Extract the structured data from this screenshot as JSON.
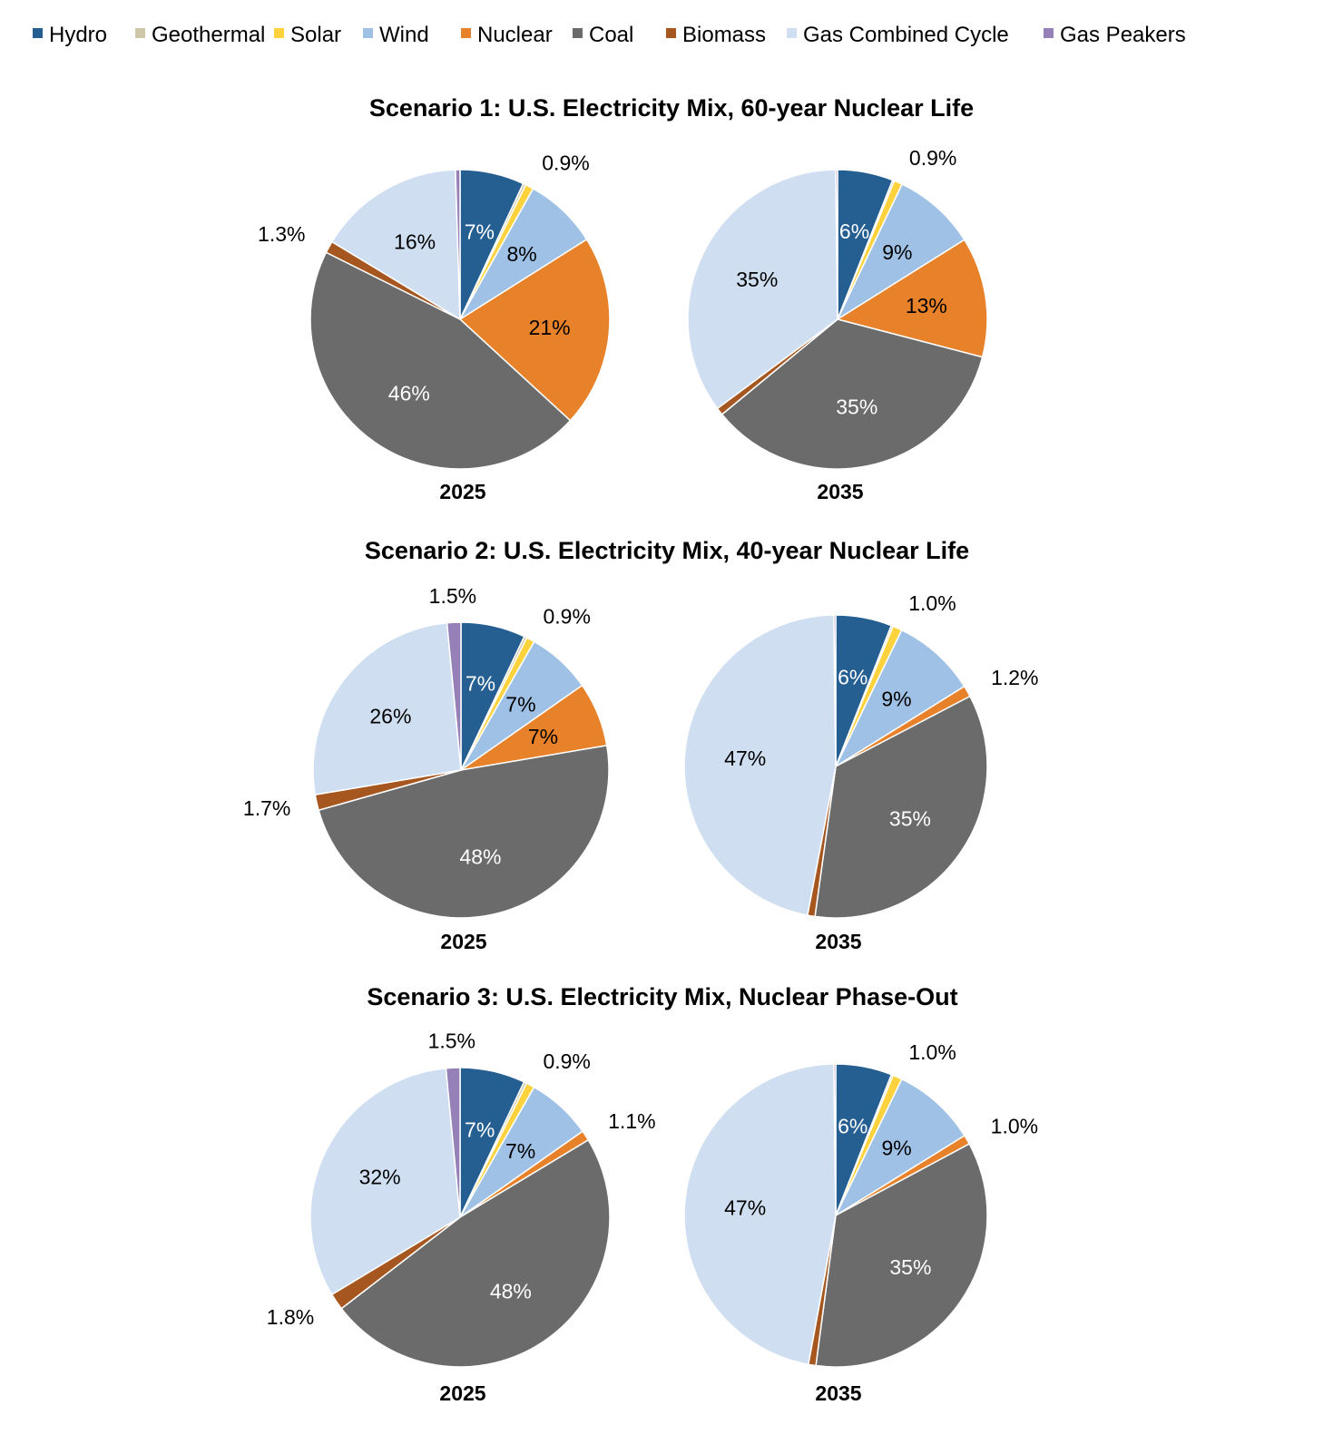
{
  "legend": [
    {
      "name": "Hydro",
      "color": "#255e91"
    },
    {
      "name": "Geothermal",
      "color": "#cfc8a8"
    },
    {
      "name": "Solar",
      "color": "#fdd23d"
    },
    {
      "name": "Wind",
      "color": "#9fc1e6"
    },
    {
      "name": "Nuclear",
      "color": "#e8822a"
    },
    {
      "name": "Coal",
      "color": "#6b6b6b"
    },
    {
      "name": "Biomass",
      "color": "#a6561f"
    },
    {
      "name": "Gas Combined Cycle",
      "color": "#cfdff1"
    },
    {
      "name": "Gas Peakers",
      "color": "#9580b8"
    }
  ],
  "chart_data": [
    {
      "type": "pie",
      "title": "Scenario 1: U.S. Electricity Mix, 60-year Nuclear Life",
      "label": "2025",
      "categories": [
        "Hydro",
        "Geothermal",
        "Solar",
        "Wind",
        "Nuclear",
        "Coal",
        "Biomass",
        "Gas Combined Cycle",
        "Gas Peakers"
      ],
      "values": [
        7,
        0.3,
        0.9,
        8,
        21,
        46,
        1.3,
        16,
        0.5
      ],
      "labels": [
        "7%",
        null,
        "0.9%",
        "8%",
        "21%",
        "46%",
        "1.3%",
        "16%",
        null
      ]
    },
    {
      "type": "pie",
      "title": "Scenario 1: U.S. Electricity Mix, 60-year Nuclear Life",
      "label": "2035",
      "categories": [
        "Hydro",
        "Geothermal",
        "Solar",
        "Wind",
        "Nuclear",
        "Coal",
        "Biomass",
        "Gas Combined Cycle",
        "Gas Peakers"
      ],
      "values": [
        6,
        0.2,
        0.9,
        9,
        13,
        35,
        0.8,
        35,
        0.2
      ],
      "labels": [
        "6%",
        null,
        "0.9%",
        "9%",
        "13%",
        "35%",
        null,
        "35%",
        null
      ]
    },
    {
      "type": "pie",
      "title": "Scenario 2: U.S. Electricity Mix, 40-year Nuclear Life",
      "label": "2025",
      "categories": [
        "Hydro",
        "Geothermal",
        "Solar",
        "Wind",
        "Nuclear",
        "Coal",
        "Biomass",
        "Gas Combined Cycle",
        "Gas Peakers"
      ],
      "values": [
        7,
        0.3,
        0.9,
        7,
        7,
        48,
        1.7,
        26,
        1.5
      ],
      "labels": [
        "7%",
        null,
        "0.9%",
        "7%",
        "7%",
        "48%",
        "1.7%",
        "26%",
        "1.5%"
      ]
    },
    {
      "type": "pie",
      "title": "Scenario 2: U.S. Electricity Mix, 40-year Nuclear Life",
      "label": "2035",
      "categories": [
        "Hydro",
        "Geothermal",
        "Solar",
        "Wind",
        "Nuclear",
        "Coal",
        "Biomass",
        "Gas Combined Cycle",
        "Gas Peakers"
      ],
      "values": [
        6,
        0.2,
        1.0,
        9,
        1.2,
        35,
        0.8,
        47,
        0.2
      ],
      "labels": [
        "6%",
        null,
        "1.0%",
        "9%",
        "1.2%",
        "35%",
        null,
        "47%",
        null
      ]
    },
    {
      "type": "pie",
      "title": "Scenario 3: U.S. Electricity Mix, Nuclear Phase-Out",
      "label": "2025",
      "categories": [
        "Hydro",
        "Geothermal",
        "Solar",
        "Wind",
        "Nuclear",
        "Coal",
        "Biomass",
        "Gas Combined Cycle",
        "Gas Peakers"
      ],
      "values": [
        7,
        0.3,
        0.9,
        7,
        1.1,
        48,
        1.8,
        32,
        1.5
      ],
      "labels": [
        "7%",
        null,
        "0.9%",
        "7%",
        "1.1%",
        "48%",
        "1.8%",
        "32%",
        "1.5%"
      ]
    },
    {
      "type": "pie",
      "title": "Scenario 3: U.S. Electricity Mix, Nuclear Phase-Out",
      "label": "2035",
      "categories": [
        "Hydro",
        "Geothermal",
        "Solar",
        "Wind",
        "Nuclear",
        "Coal",
        "Biomass",
        "Gas Combined Cycle",
        "Gas Peakers"
      ],
      "values": [
        6,
        0.2,
        1.0,
        9,
        1.0,
        35,
        0.8,
        47,
        0.2
      ],
      "labels": [
        "6%",
        null,
        "1.0%",
        "9%",
        "1.0%",
        "35%",
        null,
        "47%",
        null
      ]
    }
  ],
  "scenario_titles": [
    "Scenario 1: U.S. Electricity Mix, 60-year Nuclear Life",
    "Scenario 2: U.S. Electricity Mix, 40-year Nuclear Life",
    "Scenario 3: U.S. Electricity Mix, Nuclear Phase-Out"
  ]
}
